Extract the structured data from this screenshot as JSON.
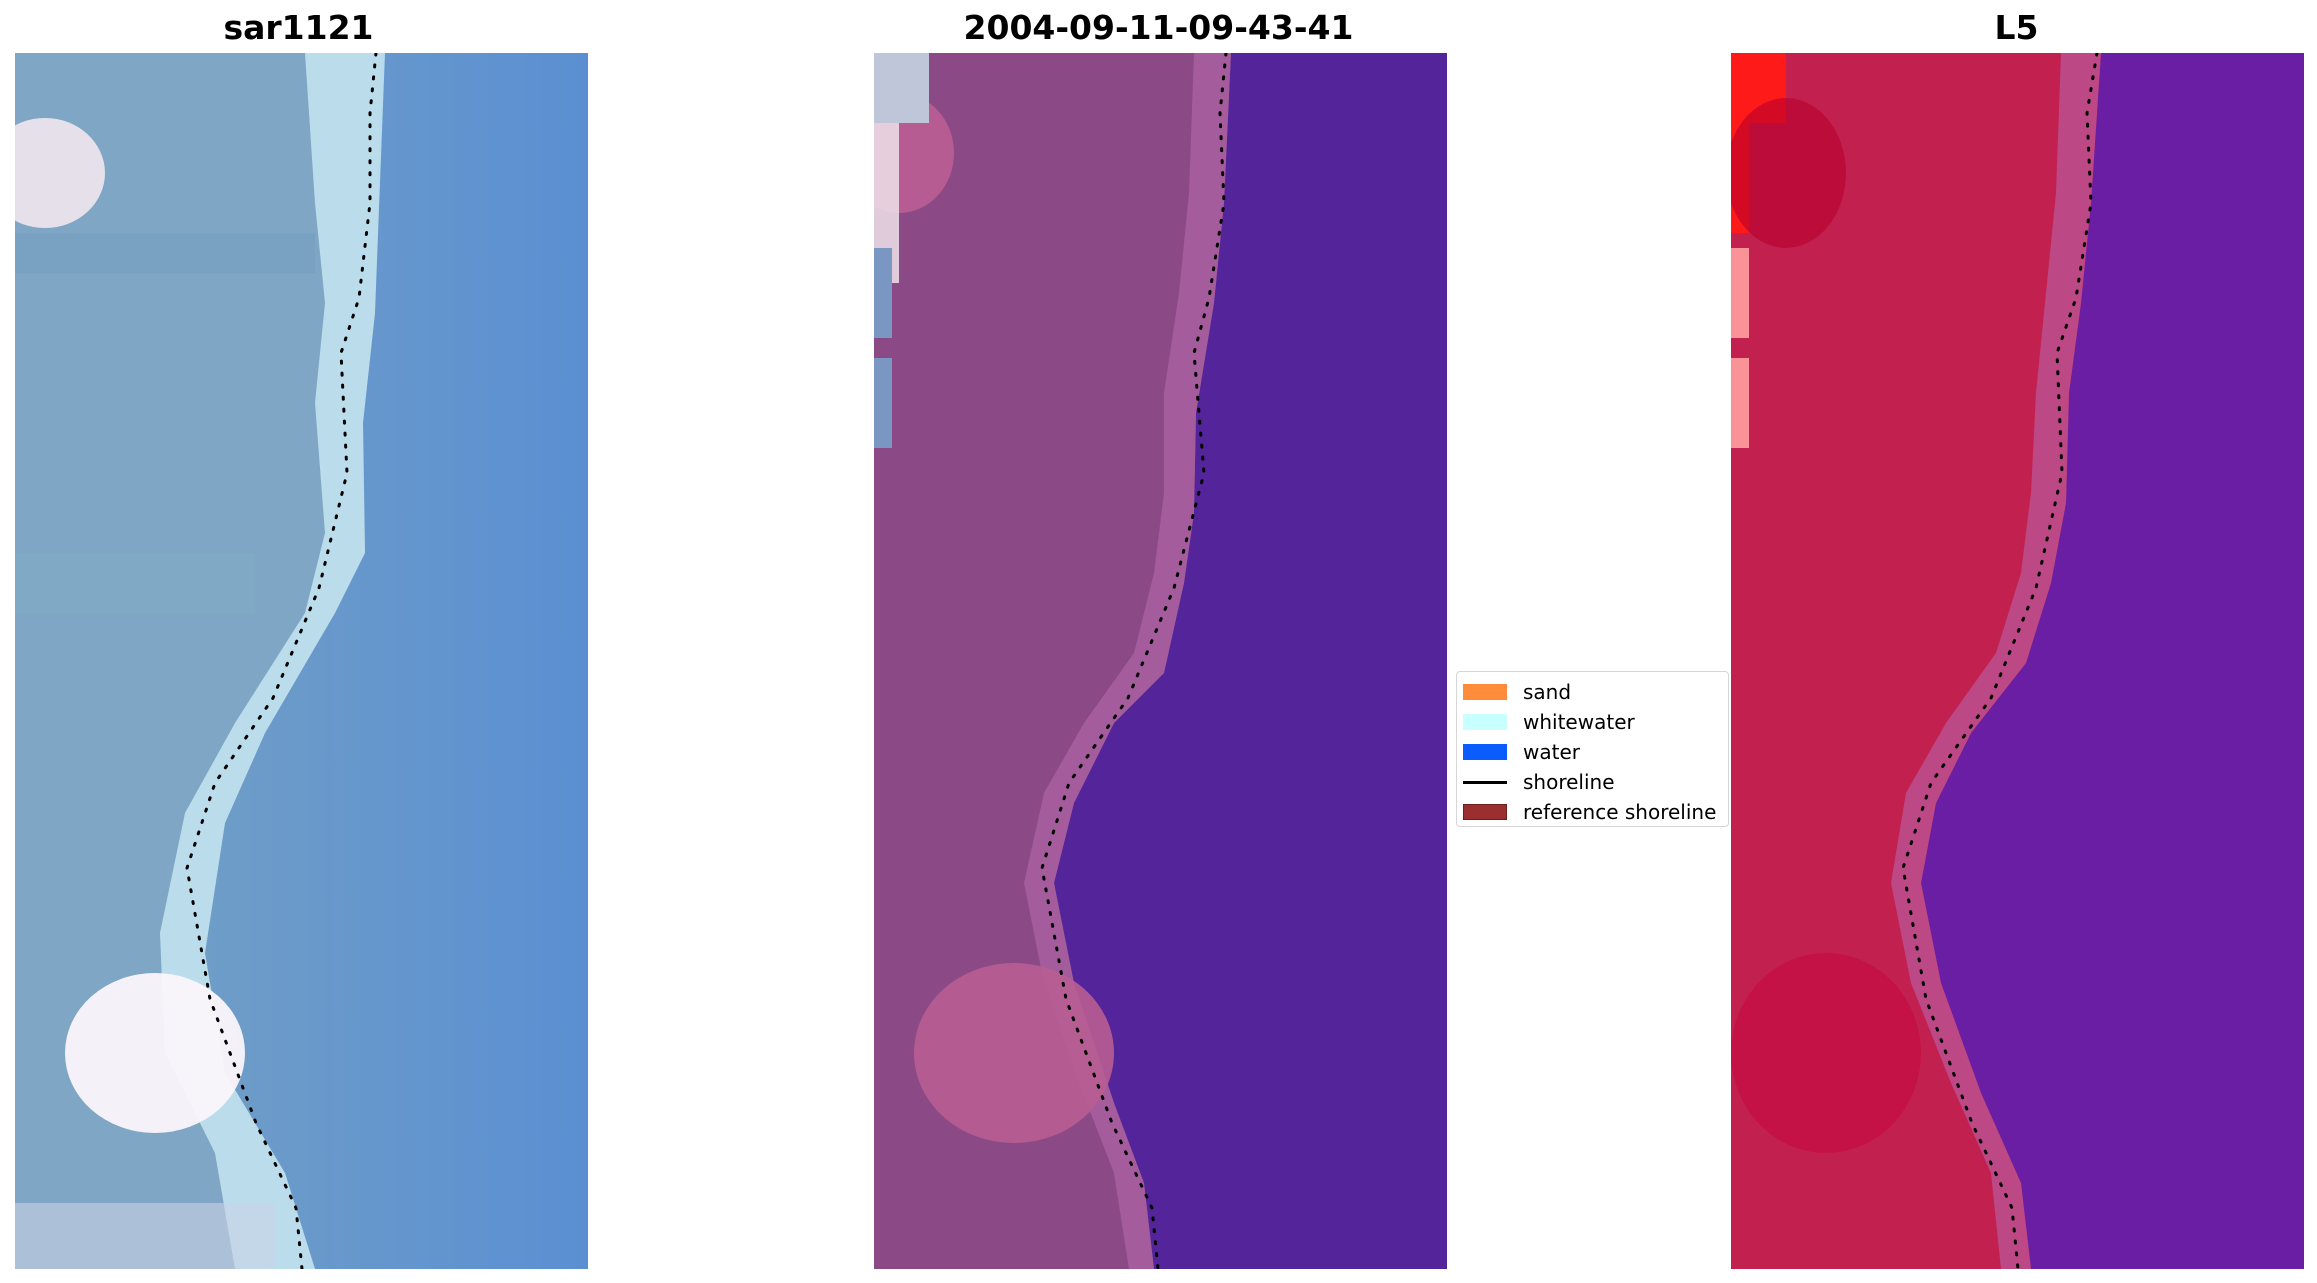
{
  "panels": [
    {
      "id": "sar",
      "title": "sar1121",
      "colors": {
        "land": "#7fa6c4",
        "water": "#5b8ed0",
        "surf": "#c6e6f2",
        "highlight": "#f1e7ee"
      }
    },
    {
      "id": "classified",
      "title": "2004-09-11-09-43-41",
      "colors": {
        "land": "#8b4a86",
        "water": "#54249a",
        "highlight": "#b85d92",
        "edge": "#a65e9e"
      }
    },
    {
      "id": "index",
      "title": "L5",
      "colors": {
        "land": "#c22150",
        "water": "#6a1ea3",
        "edge": "#bb4d8c",
        "highlight": "#ff1a1a"
      }
    }
  ],
  "legend": {
    "items": [
      {
        "label": "sand",
        "kind": "patch",
        "color": "#ff8c3a"
      },
      {
        "label": "whitewater",
        "kind": "patch",
        "color": "#c8ffff"
      },
      {
        "label": "water",
        "kind": "patch",
        "color": "#0a5cff"
      },
      {
        "label": "shoreline",
        "kind": "line",
        "color": "#000000"
      },
      {
        "label": "reference shoreline",
        "kind": "patch",
        "color": "#9b2f2f"
      }
    ]
  },
  "shoreline": {
    "style": "dotted",
    "color": "#000000",
    "path_fraction": [
      [
        0.63,
        0.0
      ],
      [
        0.62,
        0.05
      ],
      [
        0.62,
        0.12
      ],
      [
        0.6,
        0.2
      ],
      [
        0.57,
        0.25
      ],
      [
        0.58,
        0.35
      ],
      [
        0.53,
        0.44
      ],
      [
        0.45,
        0.53
      ],
      [
        0.35,
        0.6
      ],
      [
        0.3,
        0.67
      ],
      [
        0.34,
        0.78
      ],
      [
        0.42,
        0.88
      ],
      [
        0.49,
        0.95
      ],
      [
        0.5,
        1.0
      ]
    ]
  }
}
